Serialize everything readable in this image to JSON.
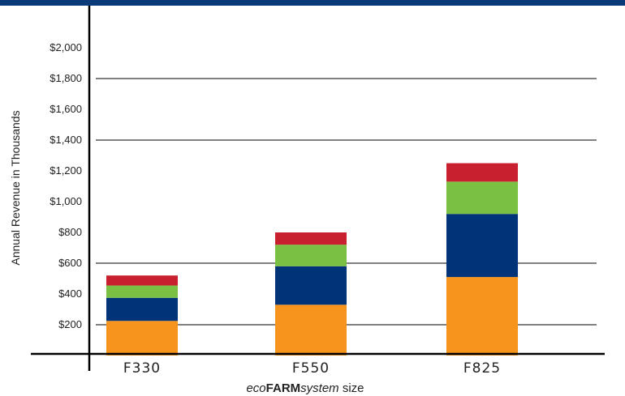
{
  "chart_data": {
    "type": "bar",
    "stacked": true,
    "categories": [
      "F330",
      "F550",
      "F825"
    ],
    "series": [
      {
        "color": "#f7941d",
        "values": [
          225,
          330,
          510
        ]
      },
      {
        "color": "#003478",
        "values": [
          150,
          250,
          410
        ]
      },
      {
        "color": "#7ac143",
        "values": [
          80,
          140,
          210
        ]
      },
      {
        "color": "#c8202f",
        "values": [
          65,
          80,
          120
        ]
      }
    ],
    "ylim": [
      0,
      2000
    ],
    "yticks": [
      200,
      400,
      600,
      800,
      1000,
      1200,
      1400,
      1600,
      1800,
      2000
    ],
    "ytick_labels": [
      "$200",
      "$400",
      "$600",
      "$800",
      "$1,000",
      "$1,200",
      "$1,400",
      "$1,600",
      "$1,800",
      "$2,000"
    ],
    "gridlines_at": [
      200,
      600,
      1400,
      1800
    ],
    "ylabel": "Annual Revenue in Thousands",
    "xlabel": {
      "prefix": "eco",
      "bold": "FARM",
      "italic": "system",
      "suffix": " size"
    },
    "title": ""
  },
  "colors": {
    "header_band": "#0b3a7a",
    "axis": "#000000",
    "grid": "#000000"
  }
}
